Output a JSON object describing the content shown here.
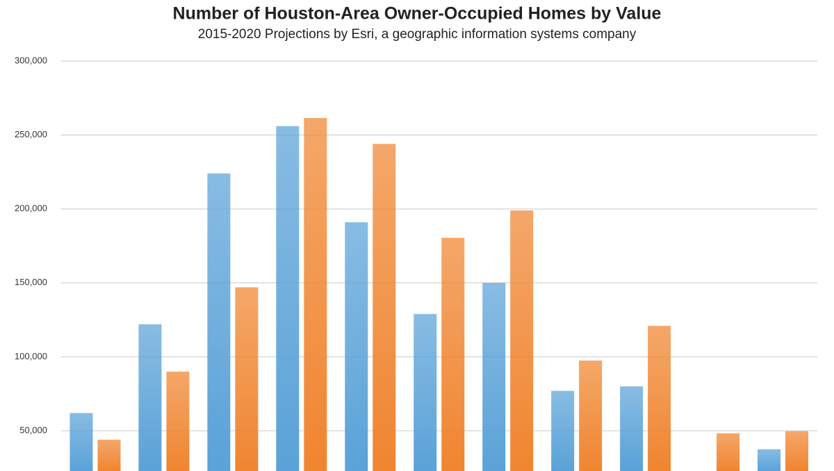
{
  "chart_data": {
    "type": "bar",
    "title": "Number of Houston-Area Owner-Occupied Homes by Value",
    "subtitle": "2015-2020 Projections by Esri, a geographic information systems company",
    "categories": [
      null,
      null,
      null,
      null,
      null,
      null,
      null,
      null,
      null,
      null,
      null
    ],
    "series": [
      {
        "color": "#5aa2d8",
        "values": [
          62000,
          122000,
          224000,
          256000,
          191000,
          129000,
          150000,
          77000,
          80000,
          null,
          37500
        ]
      },
      {
        "color": "#f08530",
        "values": [
          44000,
          90000,
          147000,
          261500,
          244000,
          180500,
          199000,
          97500,
          121000,
          48300,
          49700
        ]
      }
    ],
    "ylim": [
      22800,
      300000
    ],
    "yticks": [
      {
        "value": 50000,
        "label": "50,000"
      },
      {
        "value": 100000,
        "label": "100,000"
      },
      {
        "value": 150000,
        "label": "150,000"
      },
      {
        "value": 200000,
        "label": "200,000"
      },
      {
        "value": 250000,
        "label": "250,000"
      },
      {
        "value": 300000,
        "label": "300,000"
      }
    ],
    "grid": true
  }
}
